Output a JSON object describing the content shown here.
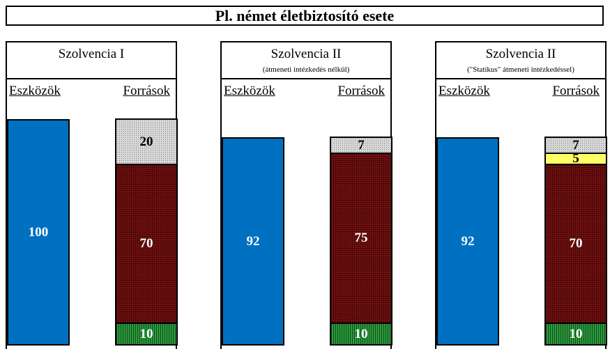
{
  "title": "Pl. német életbiztosító esete",
  "panels": [
    {
      "title": "Szolvencia I",
      "subtitle": "",
      "assets_label": "Eszközök",
      "liabilities_label": "Források",
      "assets": 100,
      "liabilities": [
        {
          "value": 20,
          "pattern": "gray"
        },
        {
          "value": 70,
          "pattern": "red"
        },
        {
          "value": 10,
          "pattern": "green"
        }
      ]
    },
    {
      "title": "Szolvencia II",
      "subtitle": "(átmeneti intézkedés nélkül)",
      "assets_label": "Eszközök",
      "liabilities_label": "Források",
      "assets": 92,
      "liabilities": [
        {
          "value": 7,
          "pattern": "gray"
        },
        {
          "value": 75,
          "pattern": "red"
        },
        {
          "value": 10,
          "pattern": "green"
        }
      ]
    },
    {
      "title": "Szolvencia II",
      "subtitle": "(\"Statikus\" átmeneti intézkedéssel)",
      "assets_label": "Eszközök",
      "liabilities_label": "Források",
      "assets": 92,
      "liabilities": [
        {
          "value": 7,
          "pattern": "gray"
        },
        {
          "value": 5,
          "pattern": "yellow"
        },
        {
          "value": 70,
          "pattern": "red"
        },
        {
          "value": 10,
          "pattern": "green"
        }
      ]
    }
  ],
  "colors": {
    "assets": "#0070c0",
    "gray": "#d9d9d9",
    "red": "#7b1212",
    "green": "#2e9a3e",
    "yellow": "#ffff66"
  }
}
